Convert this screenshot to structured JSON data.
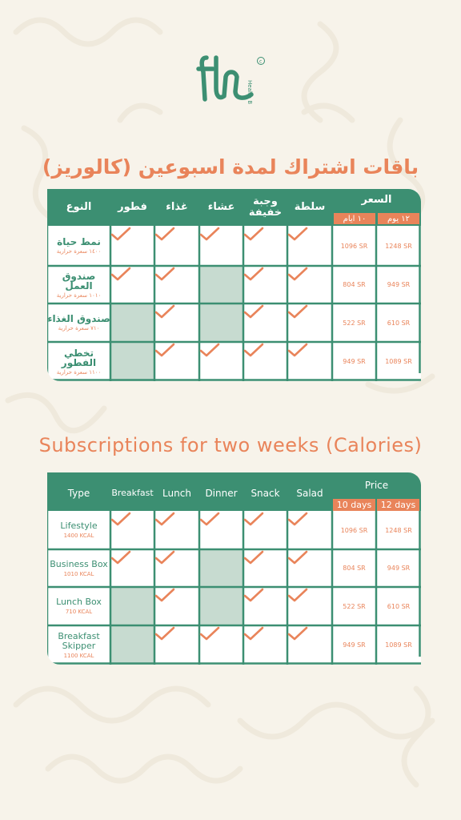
{
  "brand": {
    "logo_text": "th",
    "logo_sub": "Health Bar",
    "copyright": "©",
    "color_green": "#3c8f72",
    "color_orange": "#e9845a",
    "color_bg": "#f7f3ea",
    "color_empty": "#c7dbd0"
  },
  "arabic": {
    "heading": "باقات اشتراك لمدة اسبوعين (كالوريز)",
    "headers": {
      "type": "النوع",
      "breakfast": "فطور",
      "lunch": "غذاء",
      "dinner": "عشاء",
      "snack": "وجبة خفيفة",
      "salad": "سلطة",
      "price": "السعر",
      "days10": "١٠ ايام",
      "days12": "١٢ يوم"
    },
    "rows": [
      {
        "name": "نمط حياة",
        "cal": "١٤٠٠ سعرة حرارية",
        "price10": "1096 SR",
        "price12": "1248 SR"
      },
      {
        "name": "صندوق العمل",
        "cal": "١٠١٠ سعرة حرارية",
        "price10": "804 SR",
        "price12": "949 SR"
      },
      {
        "name": "صندوق الغذاء",
        "cal": "٧١٠ سعرة حرارية",
        "price10": "522 SR",
        "price12": "610 SR"
      },
      {
        "name": "تخطي الفطور",
        "cal": "١١٠٠ سعرة حرارية",
        "price10": "949 SR",
        "price12": "1089 SR"
      }
    ]
  },
  "english": {
    "heading": "Subscriptions for two weeks (Calories)",
    "headers": {
      "type": "Type",
      "breakfast": "Breakfast",
      "lunch": "Lunch",
      "dinner": "Dinner",
      "snack": "Snack",
      "salad": "Salad",
      "price": "Price",
      "days10": "10 days",
      "days12": "12 days"
    },
    "rows": [
      {
        "name": "Lifestyle",
        "cal": "1400 KCAL",
        "price10": "1096 SR",
        "price12": "1248 SR"
      },
      {
        "name": "Business Box",
        "cal": "1010 KCAL",
        "price10": "804 SR",
        "price12": "949 SR"
      },
      {
        "name": "Lunch Box",
        "cal": "710 KCAL",
        "price10": "522 SR",
        "price12": "610 SR"
      },
      {
        "name": "Breakfast Skipper",
        "cal": "1100 KCAL",
        "price10": "949 SR",
        "price12": "1089 SR"
      }
    ]
  },
  "meals_included": [
    {
      "breakfast": true,
      "lunch": true,
      "dinner": true,
      "snack": true,
      "salad": true
    },
    {
      "breakfast": true,
      "lunch": true,
      "dinner": false,
      "snack": true,
      "salad": true
    },
    {
      "breakfast": false,
      "lunch": true,
      "dinner": false,
      "snack": true,
      "salad": true
    },
    {
      "breakfast": false,
      "lunch": true,
      "dinner": true,
      "snack": true,
      "salad": true
    }
  ]
}
